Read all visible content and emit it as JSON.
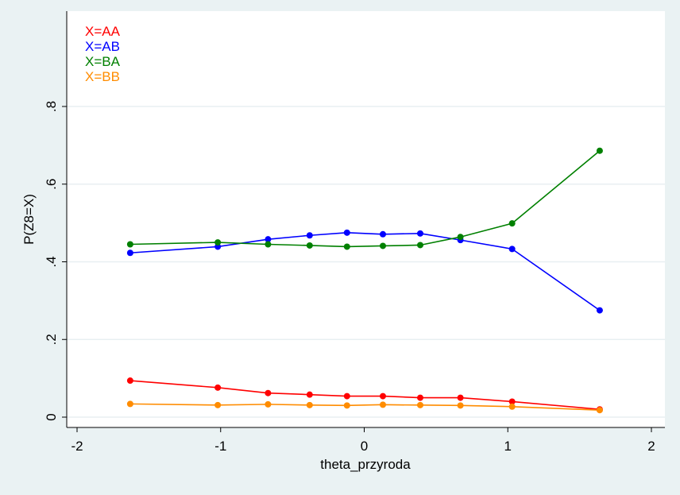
{
  "chart_data": {
    "type": "line",
    "title": "",
    "xlabel": "theta_przyroda",
    "ylabel": "P(Z8=X)",
    "xlim": [
      -2,
      2
    ],
    "ylim": [
      0,
      1
    ],
    "x_ticks": [
      -2,
      -1,
      0,
      1,
      2
    ],
    "x_tick_labels": [
      "-2",
      "-1",
      "0",
      "1",
      "2"
    ],
    "y_ticks": [
      0,
      0.2,
      0.4,
      0.6,
      0.8
    ],
    "y_tick_labels": [
      "0",
      ".2",
      ".4",
      ".6",
      ".8"
    ],
    "grid": "horizontal",
    "legend_position": "top-left",
    "x": [
      -1.63,
      -1.02,
      -0.67,
      -0.38,
      -0.12,
      0.13,
      0.39,
      0.67,
      1.03,
      1.64
    ],
    "series": [
      {
        "name": "X=AA",
        "color": "#ff0000",
        "values": [
          0.094,
          0.076,
          0.062,
          0.058,
          0.054,
          0.054,
          0.05,
          0.05,
          0.04,
          0.02
        ]
      },
      {
        "name": "X=AB",
        "color": "#0000ff",
        "values": [
          0.423,
          0.439,
          0.458,
          0.468,
          0.475,
          0.471,
          0.473,
          0.456,
          0.433,
          0.275
        ]
      },
      {
        "name": "X=BA",
        "color": "#008000",
        "values": [
          0.445,
          0.45,
          0.445,
          0.442,
          0.439,
          0.441,
          0.443,
          0.464,
          0.499,
          0.686
        ]
      },
      {
        "name": "X=BB",
        "color": "#ff8c00",
        "values": [
          0.034,
          0.031,
          0.033,
          0.031,
          0.03,
          0.032,
          0.031,
          0.03,
          0.027,
          0.018
        ]
      }
    ]
  }
}
